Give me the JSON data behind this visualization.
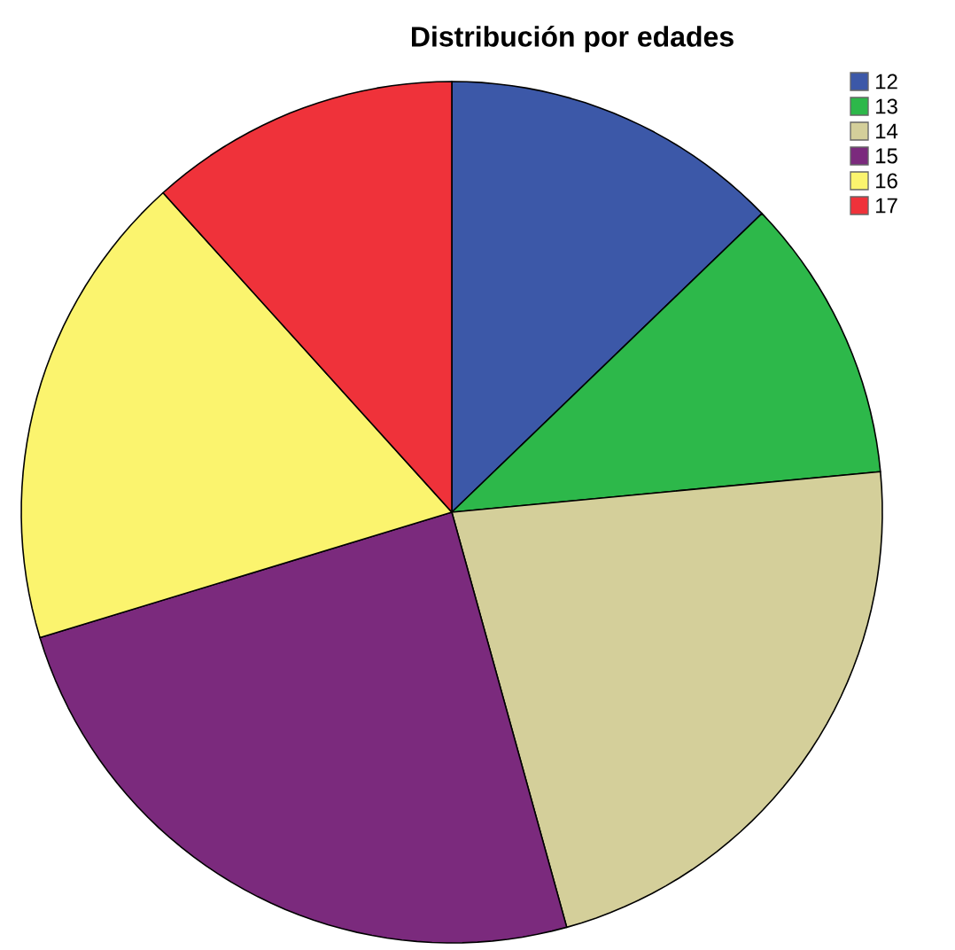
{
  "chart_data": {
    "type": "pie",
    "title": "Distribución por edades",
    "categories": [
      "12",
      "13",
      "14",
      "15",
      "16",
      "17"
    ],
    "values": [
      12.8,
      10.7,
      22.2,
      24.6,
      18.0,
      11.7
    ],
    "colors": [
      "#3c58a8",
      "#2db84a",
      "#d4cf9a",
      "#7b2a7d",
      "#fbf46e",
      "#ef323a"
    ],
    "legend": "top right"
  }
}
